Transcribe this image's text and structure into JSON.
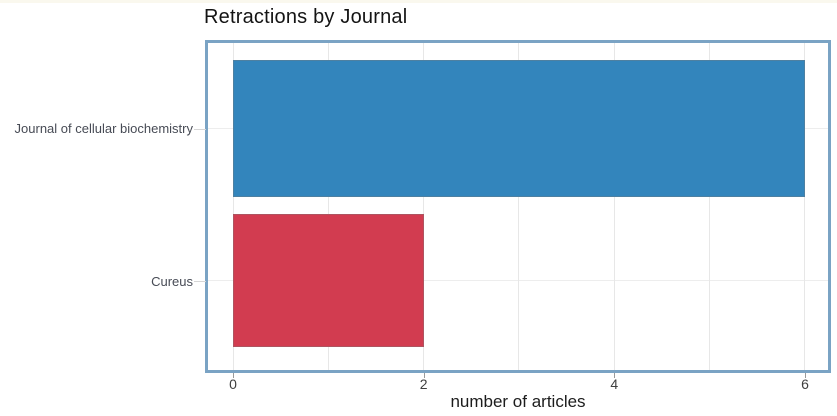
{
  "title": "Retractions by Journal",
  "x_axis_title": "number of articles",
  "chart_data": {
    "type": "bar",
    "orientation": "horizontal",
    "title": "Retractions by Journal",
    "xlabel": "number of articles",
    "ylabel": "",
    "categories": [
      "Journal of cellular biochemistry",
      "Cureus"
    ],
    "values": [
      6,
      2
    ],
    "bar_colors": [
      "#3385bc",
      "#d23c50"
    ],
    "xticks": [
      0,
      2,
      4,
      6
    ],
    "xlim": [
      -0.25,
      6.25
    ],
    "grid": "vertical gridlines at every integer 0-6, faint horizontal gridline at each category center",
    "legend": "none"
  },
  "colors": {
    "panel_border": "#7aa3c4",
    "grid_line": "#e7e7e7",
    "category_grid_line": "#ededed",
    "tick_mark": "#9a9a9a",
    "y_tick_mark": "#d6d6d6",
    "top_strip": "#faf8ee",
    "bar_blue": "#3385bc",
    "bar_red": "#d23c50"
  }
}
